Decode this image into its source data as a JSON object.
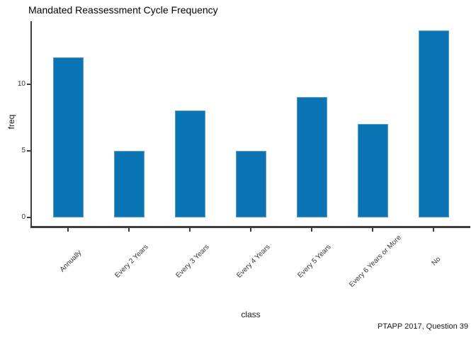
{
  "chart_data": {
    "type": "bar",
    "title": "Mandated Reassessment Cycle Frequency",
    "categories": [
      "Annually",
      "Every 2 Years",
      "Every 3 Years",
      "Every 4 Years",
      "Every 5 Years",
      "Every 6 Years or More",
      "No"
    ],
    "values": [
      12,
      5,
      8,
      5,
      9,
      7,
      14
    ],
    "xlabel": "class",
    "ylabel": "freq",
    "yticks": [
      0,
      5,
      10
    ],
    "ylim": [
      0,
      15.5
    ],
    "caption": "PTAPP 2017, Question 39",
    "grid": false,
    "legend": null,
    "x_tick_rotation_deg": 45,
    "colors": {
      "bar_fill": "#0a74b4",
      "bar_edge": "#5b9fc9",
      "axis": "#3d3d3d",
      "tick_label": "#333333",
      "title": "#000000"
    }
  }
}
